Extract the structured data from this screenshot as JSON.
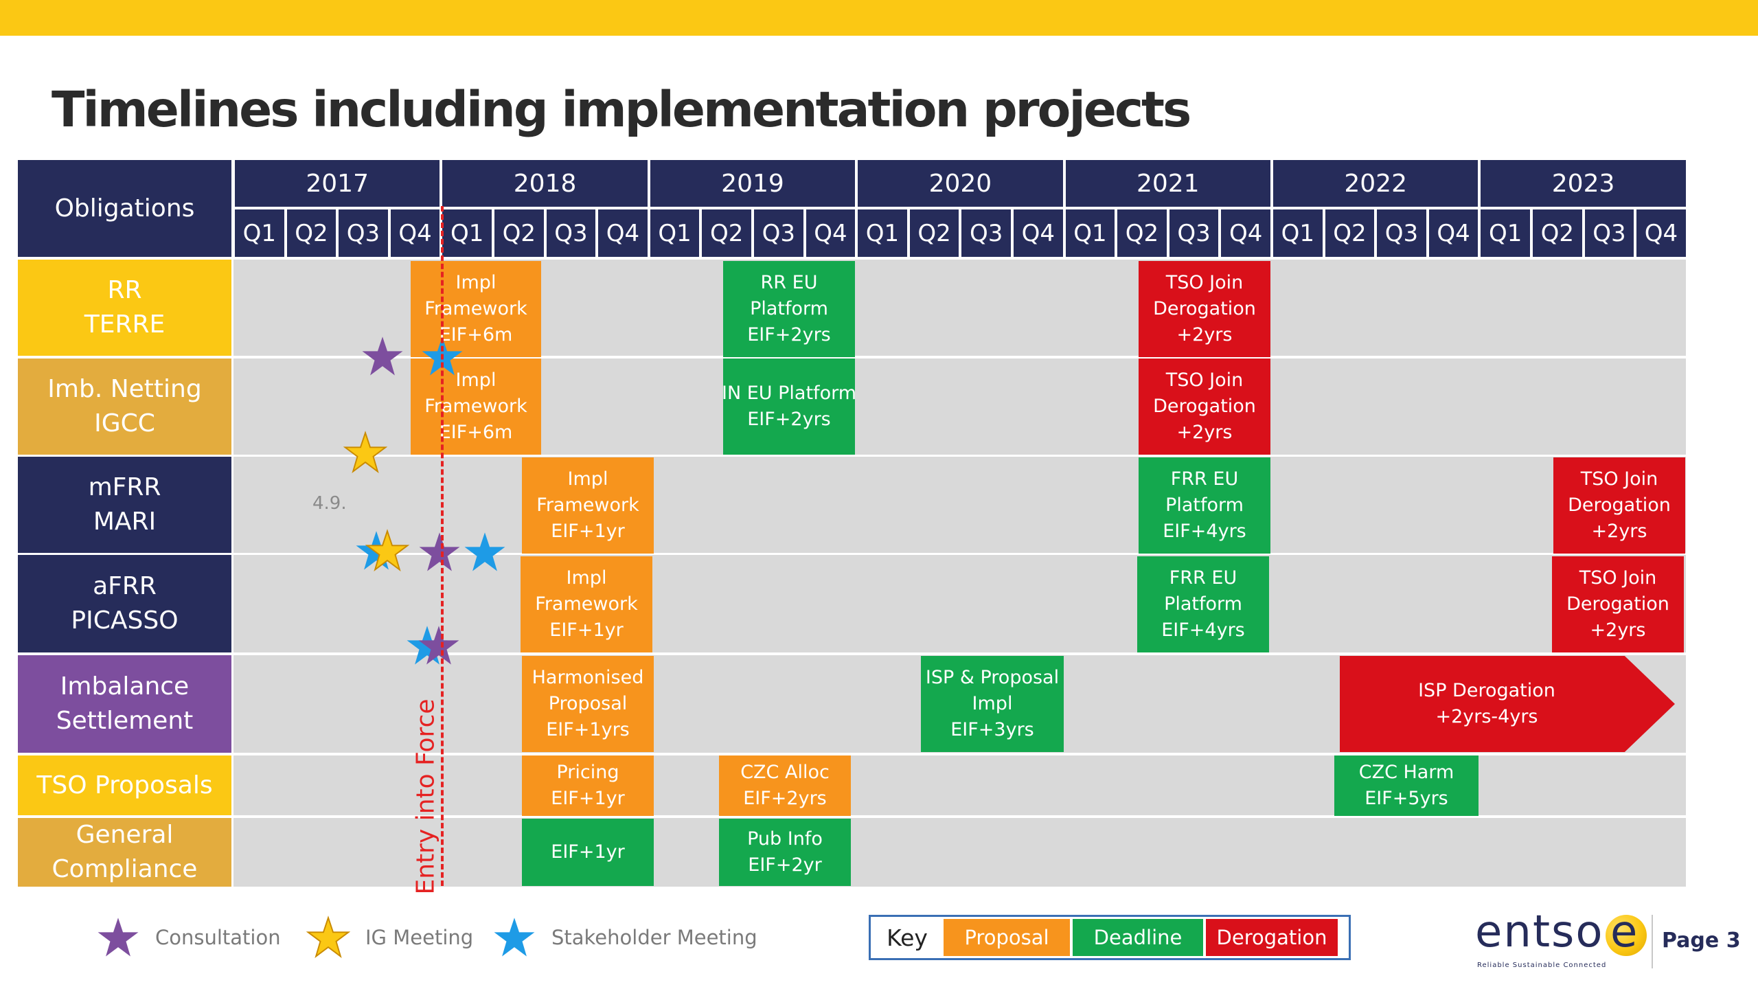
{
  "title": "Timelines including implementation projects",
  "header": {
    "obligations_label": "Obligations",
    "years": [
      "2017",
      "2018",
      "2019",
      "2020",
      "2021",
      "2022",
      "2023"
    ],
    "quarters": [
      "Q1",
      "Q2",
      "Q3",
      "Q4"
    ]
  },
  "rows": [
    {
      "lines": [
        "RR",
        "TERRE"
      ],
      "color": "#FBC814"
    },
    {
      "lines": [
        "Imb. Netting",
        "IGCC"
      ],
      "color": "#E3AC3E"
    },
    {
      "lines": [
        "mFRR",
        "MARI"
      ],
      "color": "#262C5A"
    },
    {
      "lines": [
        "aFRR",
        "PICASSO"
      ],
      "color": "#262C5A"
    },
    {
      "lines": [
        "Imbalance",
        "Settlement"
      ],
      "color": "#7D4E9E"
    },
    {
      "lines": [
        "TSO Proposals"
      ],
      "color": "#FBC814"
    },
    {
      "lines": [
        "General",
        "Compliance"
      ],
      "color": "#E3AC3E"
    }
  ],
  "bars": [
    {
      "row": 0,
      "type": "proposal",
      "lines": [
        "Impl",
        "Framework",
        "EIF+6m"
      ]
    },
    {
      "row": 0,
      "type": "deadline",
      "lines": [
        "RR EU",
        "Platform",
        "EIF+2yrs"
      ]
    },
    {
      "row": 0,
      "type": "derogation",
      "lines": [
        "TSO Join",
        "Derogation",
        "+2yrs"
      ]
    },
    {
      "row": 1,
      "type": "proposal",
      "lines": [
        "Impl",
        "Framework",
        "EIF+6m"
      ]
    },
    {
      "row": 1,
      "type": "deadline",
      "lines": [
        "IN EU Platform",
        "EIF+2yrs"
      ]
    },
    {
      "row": 1,
      "type": "derogation",
      "lines": [
        "TSO Join",
        "Derogation",
        "+2yrs"
      ]
    },
    {
      "row": 2,
      "type": "proposal",
      "lines": [
        "Impl",
        "Framework",
        "EIF+1yr"
      ]
    },
    {
      "row": 2,
      "type": "deadline",
      "lines": [
        "FRR EU",
        "Platform",
        "EIF+4yrs"
      ]
    },
    {
      "row": 2,
      "type": "derogation",
      "lines": [
        "TSO Join",
        "Derogation",
        "+2yrs"
      ]
    },
    {
      "row": 3,
      "type": "proposal",
      "lines": [
        "Impl",
        "Framework",
        "EIF+1yr"
      ]
    },
    {
      "row": 3,
      "type": "deadline",
      "lines": [
        "FRR EU",
        "Platform",
        "EIF+4yrs"
      ]
    },
    {
      "row": 3,
      "type": "derogation",
      "lines": [
        "TSO Join",
        "Derogation",
        "+2yrs"
      ]
    },
    {
      "row": 4,
      "type": "proposal",
      "lines": [
        "Harmonised",
        "Proposal",
        "EIF+1yrs"
      ]
    },
    {
      "row": 4,
      "type": "deadline",
      "lines": [
        "ISP & Proposal",
        "Impl",
        "EIF+3yrs"
      ]
    },
    {
      "row": 4,
      "type": "derogation",
      "lines": [
        "ISP Derogation",
        "+2yrs-4yrs"
      ]
    },
    {
      "row": 5,
      "type": "proposal",
      "lines": [
        "Pricing",
        "EIF+1yr"
      ]
    },
    {
      "row": 5,
      "type": "proposal",
      "lines": [
        "CZC Alloc",
        "EIF+2yrs"
      ]
    },
    {
      "row": 5,
      "type": "deadline",
      "lines": [
        "CZC Harm",
        "EIF+5yrs"
      ]
    },
    {
      "row": 6,
      "type": "deadline",
      "lines": [
        "EIF+1yr"
      ]
    },
    {
      "row": 6,
      "type": "deadline",
      "lines": [
        "Pub Info",
        "EIF+2yr"
      ]
    }
  ],
  "stars": [
    {
      "row": 0,
      "type": "consultation"
    },
    {
      "row": 0,
      "type": "stakeholder"
    },
    {
      "row": 1,
      "type": "ig"
    },
    {
      "row": 2,
      "type": "stakeholder"
    },
    {
      "row": 2,
      "type": "ig"
    },
    {
      "row": 2,
      "type": "consultation"
    },
    {
      "row": 2,
      "type": "stakeholder"
    },
    {
      "row": 3,
      "type": "stakeholder"
    },
    {
      "row": 3,
      "type": "consultation"
    }
  ],
  "note": "4.9.",
  "entry_into_force": "Entry into Force",
  "legend": {
    "consultation": "Consultation",
    "ig": "IG Meeting",
    "stakeholder": "Stakeholder Meeting"
  },
  "key": {
    "title": "Key",
    "proposal": "Proposal",
    "deadline": "Deadline",
    "derogation": "Derogation"
  },
  "colors": {
    "header": "#262C5A",
    "proposal": "#F7941D",
    "deadline": "#14A84E",
    "derogation": "#D9101A",
    "consultation_star": "#7D4E9E",
    "ig_star": "#FBC814",
    "stakeholder_star": "#1E9BE6",
    "entry_line": "#E52222"
  },
  "logo": {
    "text": "entso",
    "tagline": "Reliable Sustainable Connected"
  },
  "page_label": "Page 3"
}
